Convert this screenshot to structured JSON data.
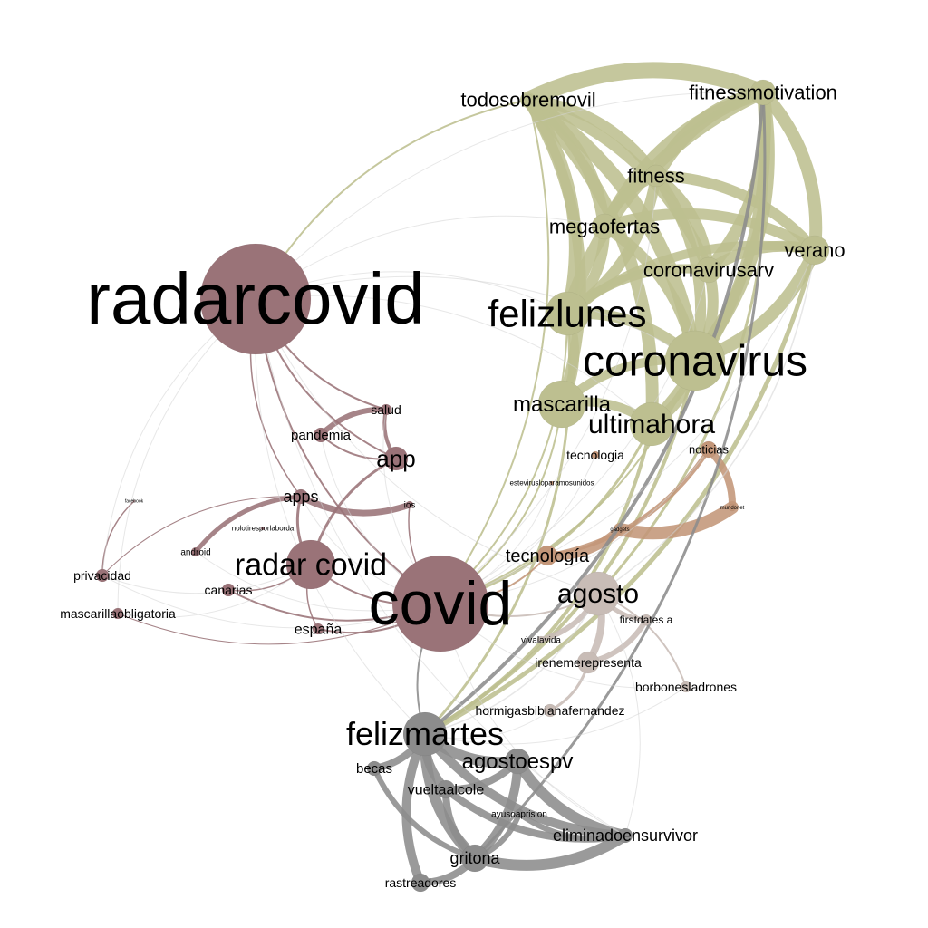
{
  "graph": {
    "colors": {
      "maroon": "#9a7378",
      "olive": "#bdbf90",
      "gray": "#8c8c8c",
      "copper": "#c39679",
      "taupe": "#c8bcb6",
      "faint": "#d4d4d4"
    },
    "nodes": [
      {
        "id": "radarcovid",
        "label": "radarcovid",
        "group": "maroon"
      },
      {
        "id": "covid",
        "label": "covid",
        "group": "maroon"
      },
      {
        "id": "radar_covid",
        "label": "radar covid",
        "group": "maroon"
      },
      {
        "id": "app",
        "label": "app",
        "group": "maroon"
      },
      {
        "id": "apps",
        "label": "apps",
        "group": "maroon"
      },
      {
        "id": "salud",
        "label": "salud",
        "group": "maroon"
      },
      {
        "id": "pandemia",
        "label": "pandemia",
        "group": "maroon"
      },
      {
        "id": "ios",
        "label": "ios",
        "group": "maroon"
      },
      {
        "id": "nolotiresporlaborda",
        "label": "nolotiresporlaborda",
        "group": "maroon"
      },
      {
        "id": "android",
        "label": "android",
        "group": "maroon"
      },
      {
        "id": "canarias",
        "label": "canarias",
        "group": "maroon"
      },
      {
        "id": "espana",
        "label": "españa",
        "group": "maroon"
      },
      {
        "id": "privacidad",
        "label": "privacidad",
        "group": "maroon"
      },
      {
        "id": "mascarillaobligatoria",
        "label": "mascarillaobligatoria",
        "group": "maroon"
      },
      {
        "id": "facebook",
        "label": "facebook",
        "group": "maroon"
      },
      {
        "id": "todosobremovil",
        "label": "todosobremovil",
        "group": "olive"
      },
      {
        "id": "fitnessmotivation",
        "label": "fitnessmotivation",
        "group": "olive"
      },
      {
        "id": "fitness",
        "label": "fitness",
        "group": "olive"
      },
      {
        "id": "megaofertas",
        "label": "megaofertas",
        "group": "olive"
      },
      {
        "id": "verano",
        "label": "verano",
        "group": "olive"
      },
      {
        "id": "coronavirusarv",
        "label": "coronavirusarv",
        "group": "olive"
      },
      {
        "id": "felizlunes",
        "label": "felizlunes",
        "group": "olive"
      },
      {
        "id": "coronavirus",
        "label": "coronavirus",
        "group": "olive"
      },
      {
        "id": "mascarilla",
        "label": "mascarilla",
        "group": "olive"
      },
      {
        "id": "ultimahora",
        "label": "ultimahora",
        "group": "olive"
      },
      {
        "id": "tecnologia_noacc",
        "label": "tecnologia",
        "group": "copper"
      },
      {
        "id": "noticias",
        "label": "noticias",
        "group": "copper"
      },
      {
        "id": "estevirus",
        "label": "estevirusloparamosunidos",
        "group": "copper"
      },
      {
        "id": "gadgets",
        "label": "gadgets",
        "group": "copper"
      },
      {
        "id": "mundonet",
        "label": "mundonet",
        "group": "copper"
      },
      {
        "id": "tecnologia_acc",
        "label": "tecnología",
        "group": "copper"
      },
      {
        "id": "agosto",
        "label": "agosto",
        "group": "taupe"
      },
      {
        "id": "firstdates",
        "label": "firstdates a",
        "group": "taupe"
      },
      {
        "id": "vivalavida",
        "label": "vivalavida",
        "group": "taupe"
      },
      {
        "id": "irenemerepresenta",
        "label": "irenemerepresenta",
        "group": "taupe"
      },
      {
        "id": "borbonesladrones",
        "label": "borbonesladrones",
        "group": "taupe"
      },
      {
        "id": "hormigas",
        "label": "hormigasbibianafernandez",
        "group": "taupe"
      },
      {
        "id": "felizmartes",
        "label": "felizmartes",
        "group": "gray"
      },
      {
        "id": "agostoespv",
        "label": "agostoespv",
        "group": "gray"
      },
      {
        "id": "becas",
        "label": "becas",
        "group": "gray"
      },
      {
        "id": "vueltaalcole",
        "label": "vueltaalcole",
        "group": "gray"
      },
      {
        "id": "ayusoaprision",
        "label": "ayusoaprision",
        "group": "gray"
      },
      {
        "id": "eliminadoensurvivor",
        "label": "eliminadoensurvivor",
        "group": "gray"
      },
      {
        "id": "gritona",
        "label": "gritona",
        "group": "gray"
      },
      {
        "id": "rastreadores",
        "label": "rastreadores",
        "group": "gray"
      }
    ],
    "edges": [
      {
        "s": "fitnessmotivation",
        "t": "todosobremovil",
        "w": 18,
        "g": "olive"
      },
      {
        "s": "todosobremovil",
        "t": "fitness",
        "w": 12,
        "g": "olive"
      },
      {
        "s": "todosobremovil",
        "t": "megaofertas",
        "w": 14,
        "g": "olive"
      },
      {
        "s": "todosobremovil",
        "t": "coronavirusarv",
        "w": 12,
        "g": "olive"
      },
      {
        "s": "todosobremovil",
        "t": "felizlunes",
        "w": 14,
        "g": "olive"
      },
      {
        "s": "todosobremovil",
        "t": "coronavirus",
        "w": 16,
        "g": "olive"
      },
      {
        "s": "todosobremovil",
        "t": "ultimahora",
        "w": 14,
        "g": "olive"
      },
      {
        "s": "todosobremovil",
        "t": "mascarilla",
        "w": 12,
        "g": "olive"
      },
      {
        "s": "fitnessmotivation",
        "t": "fitness",
        "w": 16,
        "g": "olive"
      },
      {
        "s": "fitnessmotivation",
        "t": "megaofertas",
        "w": 12,
        "g": "olive"
      },
      {
        "s": "fitnessmotivation",
        "t": "verano",
        "w": 14,
        "g": "olive"
      },
      {
        "s": "fitnessmotivation",
        "t": "coronavirusarv",
        "w": 14,
        "g": "olive"
      },
      {
        "s": "fitnessmotivation",
        "t": "felizlunes",
        "w": 14,
        "g": "olive"
      },
      {
        "s": "fitnessmotivation",
        "t": "coronavirus",
        "w": 14,
        "g": "olive"
      },
      {
        "s": "fitnessmotivation",
        "t": "ultimahora",
        "w": 12,
        "g": "olive"
      },
      {
        "s": "fitness",
        "t": "megaofertas",
        "w": 12,
        "g": "olive"
      },
      {
        "s": "fitness",
        "t": "verano",
        "w": 12,
        "g": "olive"
      },
      {
        "s": "fitness",
        "t": "coronavirusarv",
        "w": 12,
        "g": "olive"
      },
      {
        "s": "fitness",
        "t": "felizlunes",
        "w": 12,
        "g": "olive"
      },
      {
        "s": "fitness",
        "t": "coronavirus",
        "w": 12,
        "g": "olive"
      },
      {
        "s": "megaofertas",
        "t": "verano",
        "w": 12,
        "g": "olive"
      },
      {
        "s": "megaofertas",
        "t": "felizlunes",
        "w": 12,
        "g": "olive"
      },
      {
        "s": "megaofertas",
        "t": "coronavirus",
        "w": 12,
        "g": "olive"
      },
      {
        "s": "verano",
        "t": "coronavirusarv",
        "w": 12,
        "g": "olive"
      },
      {
        "s": "verano",
        "t": "coronavirus",
        "w": 14,
        "g": "olive"
      },
      {
        "s": "verano",
        "t": "felizlunes",
        "w": 10,
        "g": "olive"
      },
      {
        "s": "coronavirusarv",
        "t": "coronavirus",
        "w": 12,
        "g": "olive"
      },
      {
        "s": "coronavirusarv",
        "t": "felizlunes",
        "w": 10,
        "g": "olive"
      },
      {
        "s": "felizlunes",
        "t": "coronavirus",
        "w": 12,
        "g": "olive"
      },
      {
        "s": "felizlunes",
        "t": "mascarilla",
        "w": 10,
        "g": "olive"
      },
      {
        "s": "coronavirus",
        "t": "ultimahora",
        "w": 12,
        "g": "olive"
      },
      {
        "s": "coronavirus",
        "t": "mascarilla",
        "w": 10,
        "g": "olive"
      },
      {
        "s": "mascarilla",
        "t": "ultimahora",
        "w": 10,
        "g": "olive"
      },
      {
        "s": "verano",
        "t": "felizmartes",
        "w": 5,
        "g": "olive"
      },
      {
        "s": "coronavirus",
        "t": "felizmartes",
        "w": 4,
        "g": "olive"
      },
      {
        "s": "ultimahora",
        "t": "felizmartes",
        "w": 4,
        "g": "olive"
      },
      {
        "s": "ultimahora",
        "t": "covid",
        "w": 3,
        "g": "olive"
      },
      {
        "s": "fitnessmotivation",
        "t": "agosto",
        "w": 3,
        "g": "olive"
      },
      {
        "s": "coronavirus",
        "t": "covid",
        "w": 2,
        "g": "olive"
      },
      {
        "s": "felizlunes",
        "t": "covid",
        "w": 2,
        "g": "olive"
      },
      {
        "s": "mascarilla",
        "t": "covid",
        "w": 2,
        "g": "olive"
      },
      {
        "s": "todosobremovil",
        "t": "covid",
        "w": 2,
        "g": "olive"
      },
      {
        "s": "felizlunes",
        "t": "felizmartes",
        "w": 3,
        "g": "olive"
      },
      {
        "s": "todosobremovil",
        "t": "radarcovid",
        "w": 2,
        "g": "olive"
      },
      {
        "s": "noticias",
        "t": "mundonet",
        "w": 8,
        "g": "copper"
      },
      {
        "s": "mundonet",
        "t": "gadgets",
        "w": 14,
        "g": "copper"
      },
      {
        "s": "gadgets",
        "t": "tecnologia_acc",
        "w": 10,
        "g": "copper"
      },
      {
        "s": "noticias",
        "t": "tecnologia_acc",
        "w": 5,
        "g": "copper"
      },
      {
        "s": "salud",
        "t": "pandemia",
        "w": 6,
        "g": "maroon"
      },
      {
        "s": "salud",
        "t": "app",
        "w": 4,
        "g": "maroon"
      },
      {
        "s": "apps",
        "t": "ios",
        "w": 7,
        "g": "maroon"
      },
      {
        "s": "apps",
        "t": "android",
        "w": 5,
        "g": "maroon"
      },
      {
        "s": "app",
        "t": "radar_covid",
        "w": 3,
        "g": "maroon"
      },
      {
        "s": "apps",
        "t": "radar_covid",
        "w": 3,
        "g": "maroon"
      },
      {
        "s": "radarcovid",
        "t": "covid",
        "w": 2,
        "g": "maroon"
      },
      {
        "s": "radarcovid",
        "t": "app",
        "w": 2,
        "g": "maroon"
      },
      {
        "s": "radarcovid",
        "t": "salud",
        "w": 2,
        "g": "maroon"
      },
      {
        "s": "radarcovid",
        "t": "apps",
        "w": 1.5,
        "g": "maroon"
      },
      {
        "s": "radar_covid",
        "t": "covid",
        "w": 2,
        "g": "maroon"
      },
      {
        "s": "covid",
        "t": "canarias",
        "w": 2,
        "g": "maroon"
      },
      {
        "s": "covid",
        "t": "espana",
        "w": 2,
        "g": "maroon"
      },
      {
        "s": "privacidad",
        "t": "facebook",
        "w": 1.5,
        "g": "maroon"
      },
      {
        "s": "privacidad",
        "t": "apps",
        "w": 1,
        "g": "maroon"
      },
      {
        "s": "mascarillaobligatoria",
        "t": "covid",
        "w": 1,
        "g": "maroon"
      },
      {
        "s": "radar_covid",
        "t": "canarias",
        "w": 1.5,
        "g": "maroon"
      },
      {
        "s": "radar_covid",
        "t": "espana",
        "w": 1.5,
        "g": "maroon"
      },
      {
        "s": "pandemia",
        "t": "app",
        "w": 2,
        "g": "maroon"
      },
      {
        "s": "agosto",
        "t": "irenemerepresenta",
        "w": 8,
        "g": "taupe"
      },
      {
        "s": "agosto",
        "t": "vivalavida",
        "w": 6,
        "g": "taupe"
      },
      {
        "s": "agosto",
        "t": "firstdates",
        "w": 5,
        "g": "taupe"
      },
      {
        "s": "irenemerepresenta",
        "t": "firstdates",
        "w": 6,
        "g": "taupe"
      },
      {
        "s": "irenemerepresenta",
        "t": "hormigas",
        "w": 3,
        "g": "taupe"
      },
      {
        "s": "borbonesladrones",
        "t": "agosto",
        "w": 2,
        "g": "taupe"
      },
      {
        "s": "covid",
        "t": "agosto",
        "w": 2,
        "g": "taupe"
      },
      {
        "s": "felizmartes",
        "t": "agostoespv",
        "w": 12,
        "g": "gray"
      },
      {
        "s": "felizmartes",
        "t": "becas",
        "w": 8,
        "g": "gray"
      },
      {
        "s": "felizmartes",
        "t": "vueltaalcole",
        "w": 10,
        "g": "gray"
      },
      {
        "s": "felizmartes",
        "t": "gritona",
        "w": 12,
        "g": "gray"
      },
      {
        "s": "felizmartes",
        "t": "eliminadoensurvivor",
        "w": 10,
        "g": "gray"
      },
      {
        "s": "felizmartes",
        "t": "rastreadores",
        "w": 10,
        "g": "gray"
      },
      {
        "s": "agostoespv",
        "t": "vueltaalcole",
        "w": 8,
        "g": "gray"
      },
      {
        "s": "agostoespv",
        "t": "gritona",
        "w": 10,
        "g": "gray"
      },
      {
        "s": "agostoespv",
        "t": "eliminadoensurvivor",
        "w": 12,
        "g": "gray"
      },
      {
        "s": "vueltaalcole",
        "t": "gritona",
        "w": 8,
        "g": "gray"
      },
      {
        "s": "vueltaalcole",
        "t": "eliminadoensurvivor",
        "w": 8,
        "g": "gray"
      },
      {
        "s": "gritona",
        "t": "eliminadoensurvivor",
        "w": 12,
        "g": "gray"
      },
      {
        "s": "gritona",
        "t": "rastreadores",
        "w": 8,
        "g": "gray"
      },
      {
        "s": "ayusoaprision",
        "t": "gritona",
        "w": 6,
        "g": "gray"
      },
      {
        "s": "ayusoaprision",
        "t": "eliminadoensurvivor",
        "w": 6,
        "g": "gray"
      },
      {
        "s": "becas",
        "t": "gritona",
        "w": 6,
        "g": "gray"
      },
      {
        "s": "felizmartes",
        "t": "covid",
        "w": 2,
        "g": "gray"
      },
      {
        "s": "fitnessmotivation",
        "t": "felizmartes",
        "w": 4,
        "g": "gray"
      },
      {
        "s": "fitnessmotivation",
        "t": "gritona",
        "w": 3,
        "g": "gray"
      },
      {
        "s": "radarcovid",
        "t": "felizmartes",
        "w": 1,
        "g": "faint"
      },
      {
        "s": "radarcovid",
        "t": "fitnessmotivation",
        "w": 1,
        "g": "faint"
      },
      {
        "s": "radarcovid",
        "t": "coronavirus",
        "w": 1,
        "g": "faint"
      },
      {
        "s": "radarcovid",
        "t": "felizlunes",
        "w": 1,
        "g": "faint"
      },
      {
        "s": "radarcovid",
        "t": "ultimahora",
        "w": 1,
        "g": "faint"
      },
      {
        "s": "radarcovid",
        "t": "megaofertas",
        "w": 1,
        "g": "faint"
      },
      {
        "s": "radarcovid",
        "t": "agosto",
        "w": 1,
        "g": "faint"
      },
      {
        "s": "radarcovid",
        "t": "eliminadoensurvivor",
        "w": 1,
        "g": "faint"
      },
      {
        "s": "radarcovid",
        "t": "privacidad",
        "w": 1,
        "g": "faint"
      },
      {
        "s": "radarcovid",
        "t": "mascarillaobligatoria",
        "w": 1,
        "g": "faint"
      },
      {
        "s": "covid",
        "t": "coronavirusarv",
        "w": 1,
        "g": "faint"
      },
      {
        "s": "covid",
        "t": "fitness",
        "w": 1,
        "g": "faint"
      },
      {
        "s": "covid",
        "t": "verano",
        "w": 1,
        "g": "faint"
      },
      {
        "s": "covid",
        "t": "eliminadoensurvivor",
        "w": 1,
        "g": "faint"
      },
      {
        "s": "covid",
        "t": "borbonesladrones",
        "w": 1,
        "g": "faint"
      },
      {
        "s": "covid",
        "t": "noticias",
        "w": 1,
        "g": "faint"
      },
      {
        "s": "covid",
        "t": "tecnologia_noacc",
        "w": 1,
        "g": "faint"
      },
      {
        "s": "covid",
        "t": "apps",
        "w": 1,
        "g": "faint"
      },
      {
        "s": "covid",
        "t": "salud",
        "w": 1,
        "g": "faint"
      },
      {
        "s": "covid",
        "t": "pandemia",
        "w": 1,
        "g": "faint"
      },
      {
        "s": "covid",
        "t": "android",
        "w": 1,
        "g": "faint"
      },
      {
        "s": "covid",
        "t": "privacidad",
        "w": 1,
        "g": "faint"
      },
      {
        "s": "radar_covid",
        "t": "mascarillaobligatoria",
        "w": 1,
        "g": "faint"
      },
      {
        "s": "radar_covid",
        "t": "privacidad",
        "w": 1,
        "g": "faint"
      },
      {
        "s": "agosto",
        "t": "felizmartes",
        "w": 1.5,
        "g": "faint"
      },
      {
        "s": "agosto",
        "t": "verano",
        "w": 1.5,
        "g": "faint"
      },
      {
        "s": "hormigas",
        "t": "felizmartes",
        "w": 1,
        "g": "faint"
      },
      {
        "s": "borbonesladrones",
        "t": "felizmartes",
        "w": 1,
        "g": "faint"
      },
      {
        "s": "eliminadoensurvivor",
        "t": "agosto",
        "w": 1,
        "g": "faint"
      },
      {
        "s": "tecnologia_acc",
        "t": "covid",
        "w": 2,
        "g": "copper"
      },
      {
        "s": "estevirus",
        "t": "covid",
        "w": 1,
        "g": "faint"
      },
      {
        "s": "ios",
        "t": "covid",
        "w": 1.5,
        "g": "maroon"
      }
    ]
  }
}
